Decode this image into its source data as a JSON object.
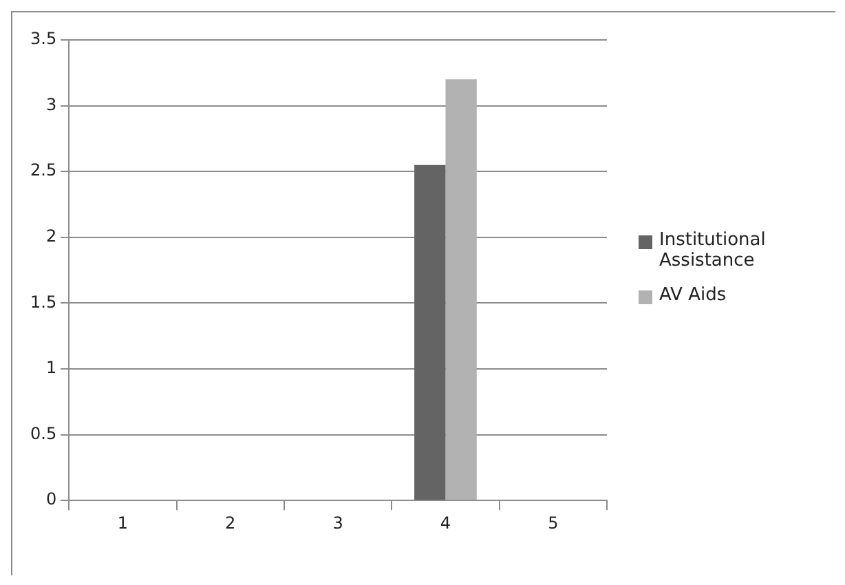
{
  "chart_data": {
    "type": "bar",
    "categories": [
      "1",
      "2",
      "3",
      "4",
      "5"
    ],
    "series": [
      {
        "name": "Institutional Assistance",
        "color": "#646464",
        "values": [
          0,
          0,
          0,
          2.55,
          0
        ]
      },
      {
        "name": "AV Aids",
        "color": "#b2b2b2",
        "values": [
          0,
          0,
          0,
          3.2,
          0
        ]
      }
    ],
    "ylim": [
      0,
      3.5
    ],
    "yticks": [
      0,
      0.5,
      1,
      1.5,
      2,
      2.5,
      3,
      3.5
    ],
    "grid": "y",
    "legend": "right"
  }
}
